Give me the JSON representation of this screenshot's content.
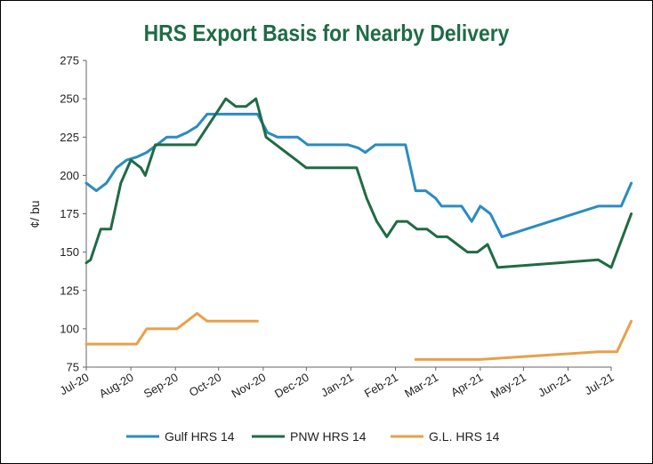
{
  "chart_data": {
    "type": "line",
    "title": "HRS Export Basis for Nearby Delivery",
    "ylabel": "¢/ bu",
    "xlabel": "",
    "ylim": [
      75,
      275
    ],
    "yticks": [
      75,
      100,
      125,
      150,
      175,
      200,
      225,
      250,
      275
    ],
    "xlim": [
      "2020-07-01",
      "2021-07-01"
    ],
    "xtick_labels": [
      "Jul-20",
      "Aug-20",
      "Sep-20",
      "Oct-20",
      "Nov-20",
      "Dec-20",
      "Jan-21",
      "Feb-21",
      "Mar-21",
      "Apr-21",
      "May-21",
      "Jun-21",
      "Jul-21"
    ],
    "xtick_dates": [
      "2020-07-01",
      "2020-08-01",
      "2020-09-01",
      "2020-10-01",
      "2020-11-01",
      "2020-12-01",
      "2021-01-01",
      "2021-02-01",
      "2021-03-01",
      "2021-04-01",
      "2021-05-01",
      "2021-06-01",
      "2021-07-01"
    ],
    "grid": false,
    "legend_position": "bottom",
    "series": [
      {
        "name": "Gulf HRS 14",
        "color": "#2a8cc0",
        "points": [
          [
            "2020-07-01",
            195
          ],
          [
            "2020-07-08",
            190
          ],
          [
            "2020-07-15",
            195
          ],
          [
            "2020-07-22",
            205
          ],
          [
            "2020-07-29",
            210
          ],
          [
            "2020-08-05",
            212
          ],
          [
            "2020-08-12",
            215
          ],
          [
            "2020-08-19",
            220
          ],
          [
            "2020-08-26",
            225
          ],
          [
            "2020-09-02",
            225
          ],
          [
            "2020-09-09",
            228
          ],
          [
            "2020-09-16",
            232
          ],
          [
            "2020-09-23",
            240
          ],
          [
            "2020-09-30",
            240
          ],
          [
            "2020-10-07",
            240
          ],
          [
            "2020-10-14",
            240
          ],
          [
            "2020-10-21",
            240
          ],
          [
            "2020-10-28",
            240
          ],
          [
            "2020-11-04",
            228
          ],
          [
            "2020-11-11",
            225
          ],
          [
            "2020-11-18",
            225
          ],
          [
            "2020-11-25",
            225
          ],
          [
            "2020-12-02",
            220
          ],
          [
            "2020-12-09",
            220
          ],
          [
            "2020-12-16",
            220
          ],
          [
            "2020-12-23",
            220
          ],
          [
            "2020-12-30",
            220
          ],
          [
            "2021-01-06",
            218
          ],
          [
            "2021-01-11",
            215
          ],
          [
            "2021-01-18",
            220
          ],
          [
            "2021-01-25",
            220
          ],
          [
            "2021-02-01",
            220
          ],
          [
            "2021-02-08",
            220
          ],
          [
            "2021-02-15",
            190
          ],
          [
            "2021-02-22",
            190
          ],
          [
            "2021-03-01",
            185
          ],
          [
            "2021-03-05",
            180
          ],
          [
            "2021-03-12",
            180
          ],
          [
            "2021-03-19",
            180
          ],
          [
            "2021-03-26",
            170
          ],
          [
            "2021-04-01",
            180
          ],
          [
            "2021-04-08",
            175
          ],
          [
            "2021-04-16",
            160
          ],
          [
            "2021-06-22",
            180
          ],
          [
            "2021-07-08",
            180
          ],
          [
            "2021-07-15",
            195
          ]
        ]
      },
      {
        "name": "PNW HRS 14",
        "color": "#1f6b45",
        "points": [
          [
            "2020-07-01",
            143
          ],
          [
            "2020-07-04",
            145
          ],
          [
            "2020-07-11",
            165
          ],
          [
            "2020-07-18",
            165
          ],
          [
            "2020-07-25",
            195
          ],
          [
            "2020-08-01",
            210
          ],
          [
            "2020-08-08",
            205
          ],
          [
            "2020-08-11",
            200
          ],
          [
            "2020-08-18",
            220
          ],
          [
            "2020-08-25",
            220
          ],
          [
            "2020-09-01",
            220
          ],
          [
            "2020-09-08",
            220
          ],
          [
            "2020-09-15",
            220
          ],
          [
            "2020-09-22",
            230
          ],
          [
            "2020-09-29",
            240
          ],
          [
            "2020-10-06",
            250
          ],
          [
            "2020-10-13",
            245
          ],
          [
            "2020-10-20",
            245
          ],
          [
            "2020-10-27",
            250
          ],
          [
            "2020-11-03",
            225
          ],
          [
            "2020-11-10",
            220
          ],
          [
            "2020-11-17",
            215
          ],
          [
            "2020-11-24",
            210
          ],
          [
            "2020-12-01",
            205
          ],
          [
            "2020-12-08",
            205
          ],
          [
            "2020-12-15",
            205
          ],
          [
            "2020-12-22",
            205
          ],
          [
            "2020-12-29",
            205
          ],
          [
            "2021-01-05",
            205
          ],
          [
            "2021-01-12",
            185
          ],
          [
            "2021-01-19",
            170
          ],
          [
            "2021-01-26",
            160
          ],
          [
            "2021-02-02",
            170
          ],
          [
            "2021-02-09",
            170
          ],
          [
            "2021-02-16",
            165
          ],
          [
            "2021-02-23",
            165
          ],
          [
            "2021-03-02",
            160
          ],
          [
            "2021-03-09",
            160
          ],
          [
            "2021-03-16",
            155
          ],
          [
            "2021-03-23",
            150
          ],
          [
            "2021-03-30",
            150
          ],
          [
            "2021-04-06",
            155
          ],
          [
            "2021-04-13",
            140
          ],
          [
            "2021-06-22",
            145
          ],
          [
            "2021-07-01",
            140
          ],
          [
            "2021-07-15",
            175
          ]
        ]
      },
      {
        "name": "G.L. HRS 14",
        "color": "#e8a04a",
        "segments": [
          [
            [
              "2020-07-01",
              90
            ],
            [
              "2020-07-15",
              90
            ],
            [
              "2020-07-29",
              90
            ],
            [
              "2020-08-05",
              90
            ],
            [
              "2020-08-12",
              100
            ],
            [
              "2020-08-19",
              100
            ],
            [
              "2020-08-26",
              100
            ],
            [
              "2020-09-02",
              100
            ],
            [
              "2020-09-09",
              105
            ],
            [
              "2020-09-16",
              110
            ],
            [
              "2020-09-23",
              105
            ],
            [
              "2020-09-30",
              105
            ],
            [
              "2020-10-07",
              105
            ],
            [
              "2020-10-14",
              105
            ],
            [
              "2020-10-21",
              105
            ],
            [
              "2020-10-28",
              105
            ]
          ],
          [
            [
              "2021-02-15",
              80
            ],
            [
              "2021-03-01",
              80
            ],
            [
              "2021-04-01",
              80
            ],
            [
              "2021-06-22",
              85
            ],
            [
              "2021-07-01",
              85
            ],
            [
              "2021-07-05",
              85
            ],
            [
              "2021-07-15",
              105
            ]
          ]
        ]
      }
    ]
  }
}
